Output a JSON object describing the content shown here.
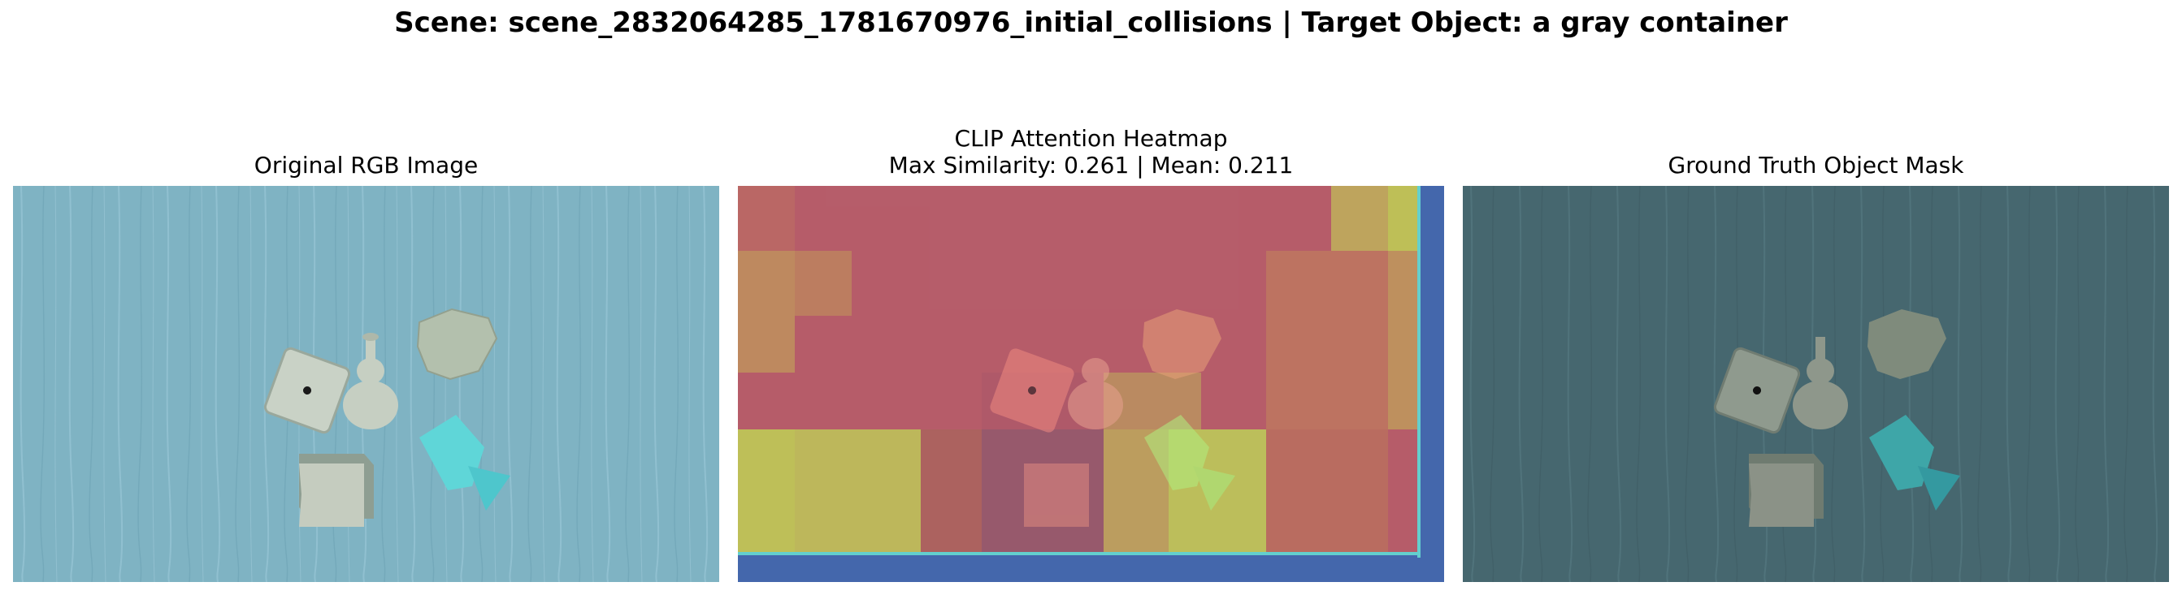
{
  "figure": {
    "suptitle": "Scene: scene_2832064285_1781670976_initial_collisions | Target Object: a gray container"
  },
  "panels": [
    {
      "title_lines": [
        "Original RGB Image"
      ]
    },
    {
      "title_lines": [
        "CLIP Attention Heatmap",
        "Max Similarity: 0.261 | Mean: 0.211"
      ]
    },
    {
      "title_lines": [
        "Ground Truth Object Mask"
      ]
    }
  ],
  "colors": {
    "table_base": "#7fb3c3",
    "mask_tint": "#46676f",
    "heat_red": "#c04050",
    "heat_yellow": "#c8c840",
    "heat_blue": "#3a5aa8"
  },
  "objects": [
    "square plate",
    "gourd vase",
    "rock",
    "gray container",
    "cyan megaphone"
  ]
}
